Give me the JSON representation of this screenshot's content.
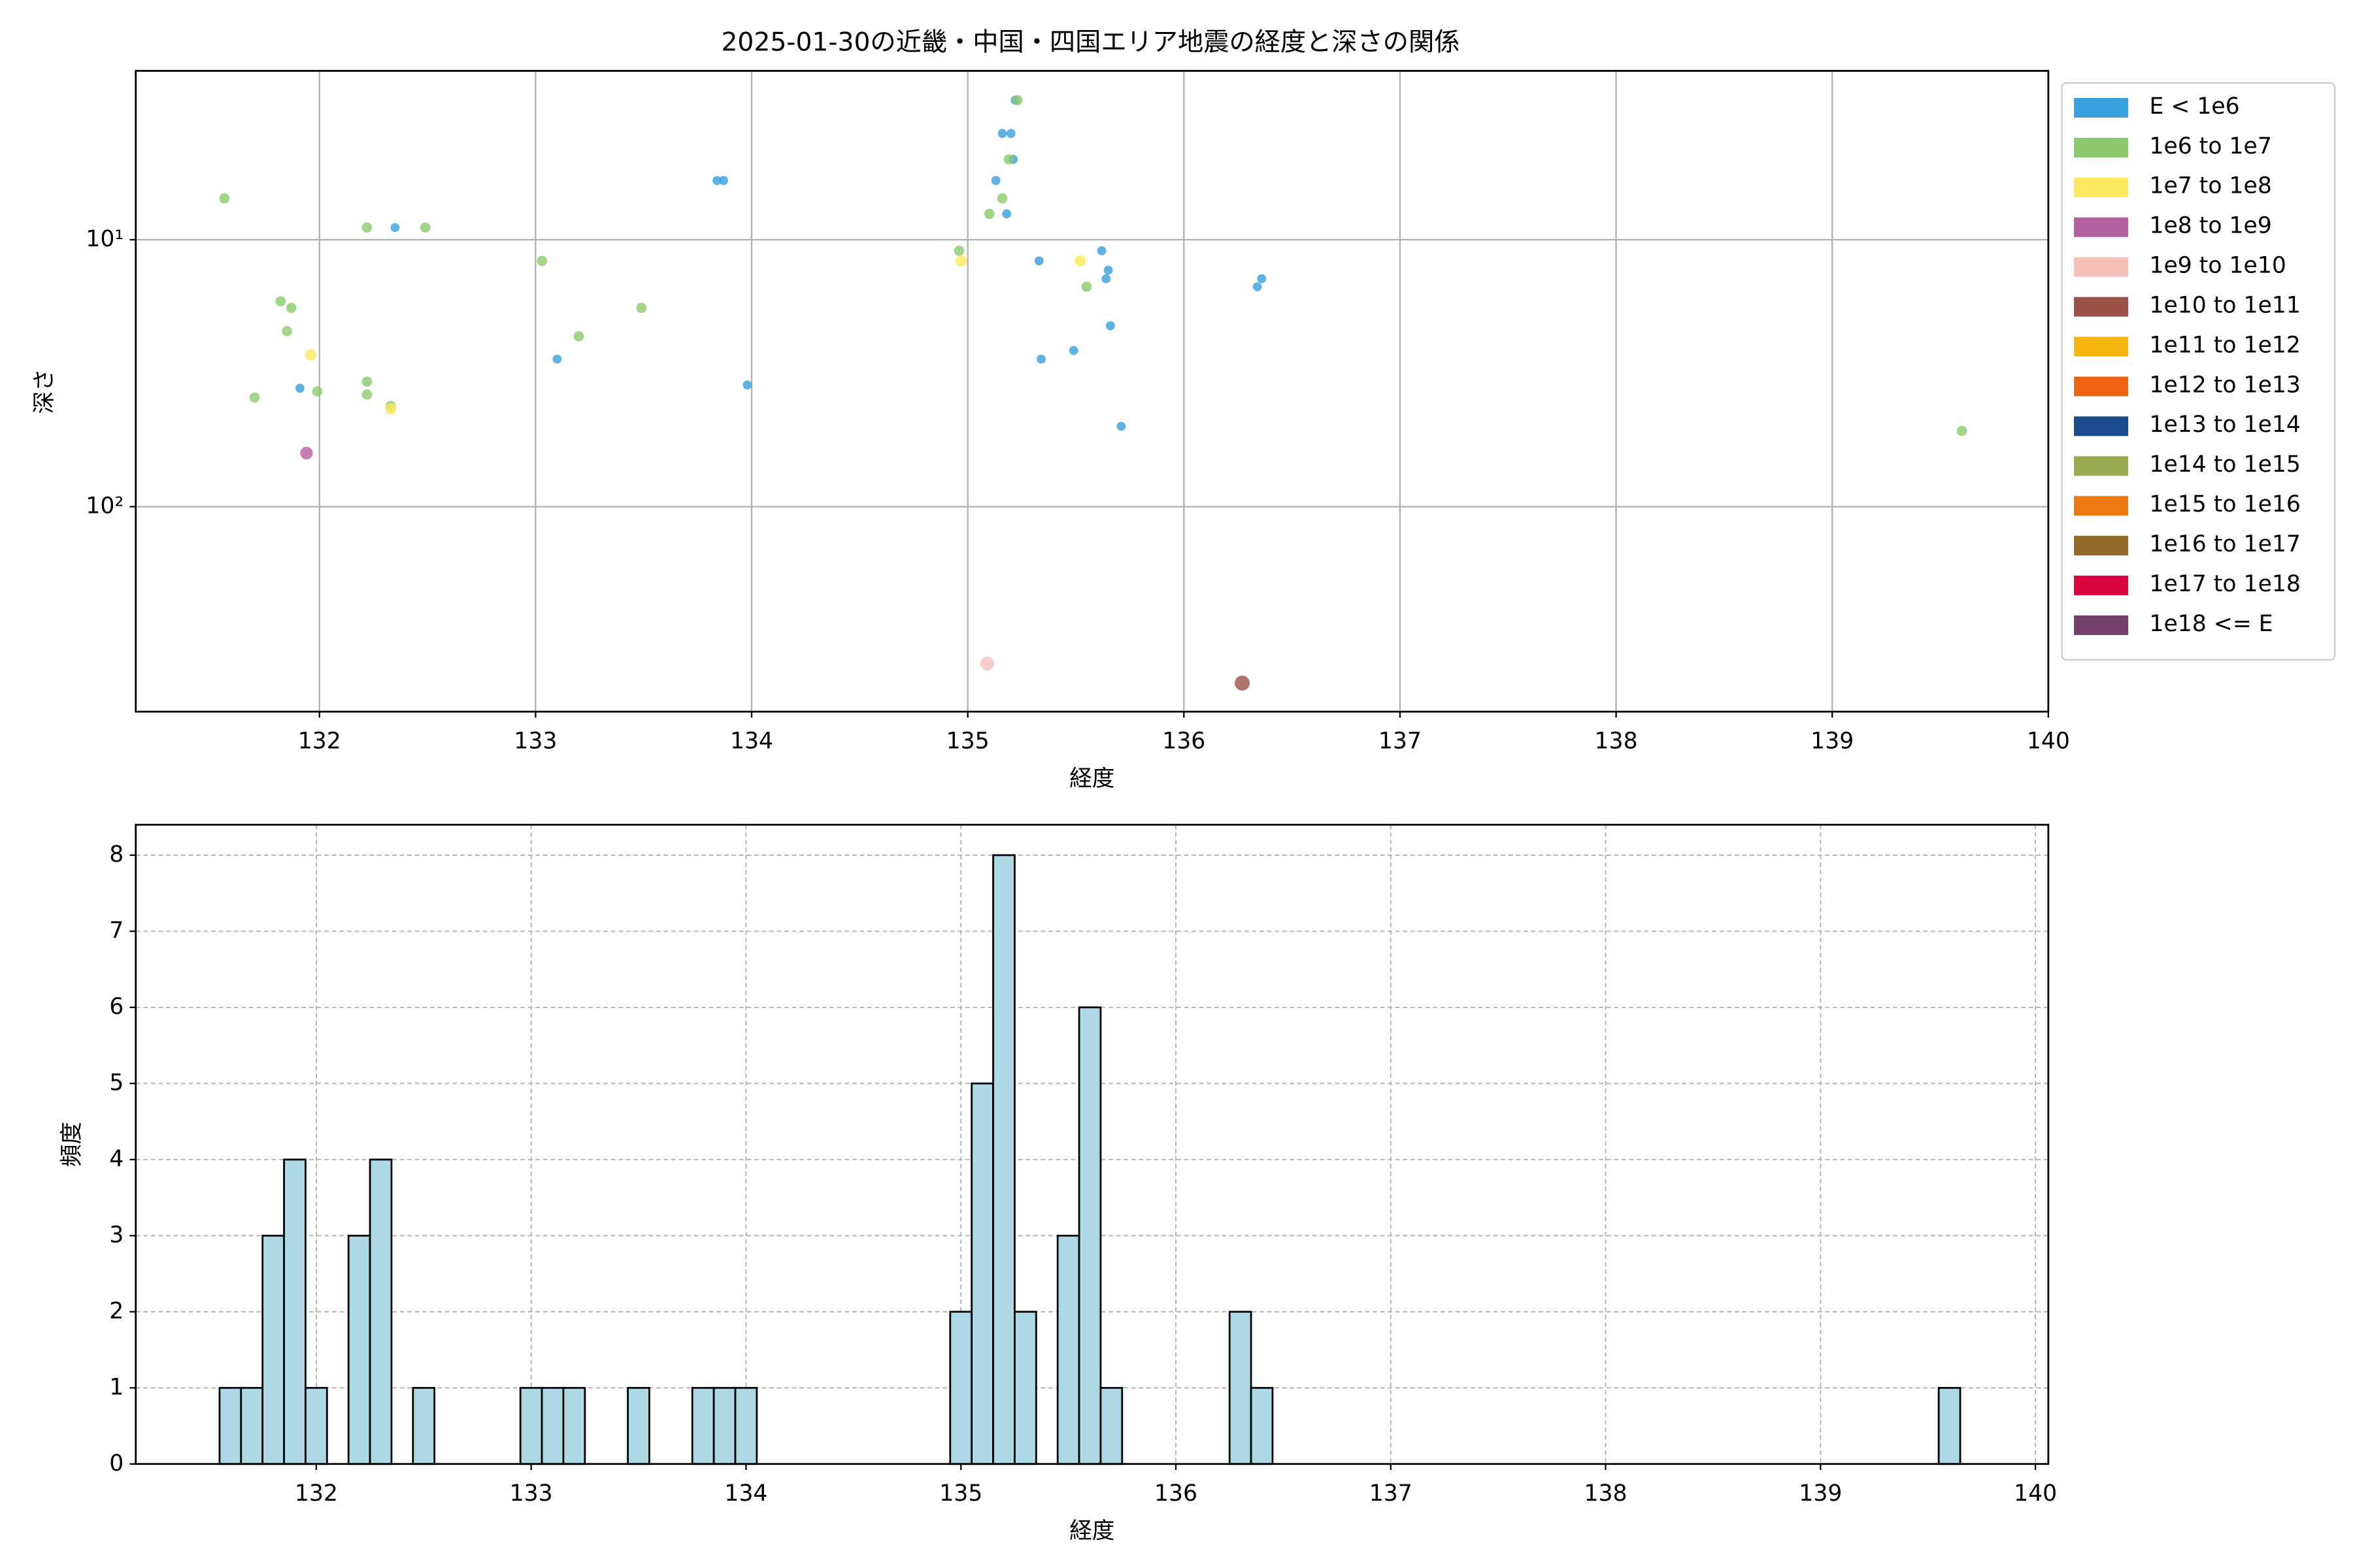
{
  "chart_data": [
    {
      "type": "scatter",
      "title": "2025-01-30の近畿・中国・四国エリア地震の経度と深さの関係",
      "xlabel": "経度",
      "ylabel": "深さ",
      "xlim": [
        131.15,
        140.0
      ],
      "xticks": [
        132,
        133,
        134,
        135,
        136,
        137,
        138,
        139,
        140
      ],
      "ylim": [
        2.33,
        586
      ],
      "yscale": "log",
      "yinverted": true,
      "yticks": [
        {
          "value": 10,
          "label": "10¹"
        },
        {
          "value": 100,
          "label": "10²"
        }
      ],
      "grid": true,
      "legend": "outside-upper-right",
      "series": [
        {
          "name": "E < 1e6",
          "color": "#3a9fdd",
          "x": [
            132.35,
            131.91,
            133.1,
            133.84,
            133.87,
            133.98,
            135.22,
            135.16,
            135.2,
            135.21,
            135.13,
            135.18,
            135.33,
            135.34,
            135.62,
            135.65,
            135.64,
            135.66,
            135.49,
            135.71,
            136.36,
            136.34
          ],
          "values": [
            9,
            36,
            28,
            6,
            6,
            35,
            3,
            4,
            4,
            5,
            6,
            8,
            12,
            28,
            11,
            13,
            14,
            21,
            26,
            50,
            14,
            15
          ]
        },
        {
          "name": "1e6 to 1e7",
          "color": "#8cc96e",
          "x": [
            131.56,
            132.22,
            132.49,
            131.82,
            131.87,
            131.85,
            131.7,
            131.99,
            132.22,
            132.22,
            132.33,
            133.03,
            133.2,
            133.49,
            134.96,
            135.23,
            135.19,
            135.16,
            135.1,
            135.55,
            139.6
          ],
          "values": [
            7,
            9,
            9,
            17,
            18,
            22,
            39,
            37,
            34,
            38,
            42,
            12,
            23,
            18,
            11,
            3,
            5,
            7,
            8,
            15,
            52
          ]
        },
        {
          "name": "1e7 to 1e8",
          "color": "#fde95e",
          "x": [
            131.96,
            134.97,
            135.52,
            132.33
          ],
          "values": [
            27,
            12,
            12,
            43
          ]
        },
        {
          "name": "1e8 to 1e9",
          "color": "#b3609f",
          "x": [
            131.94
          ],
          "values": [
            63
          ]
        },
        {
          "name": "1e9 to 1e10",
          "color": "#f5bfb8",
          "x": [
            135.09
          ],
          "values": [
            387
          ]
        },
        {
          "name": "1e10 to 1e11",
          "color": "#9a5048",
          "x": [
            136.27
          ],
          "values": [
            458
          ]
        },
        {
          "name": "1e11 to 1e12",
          "color": "#f6b40e",
          "x": [],
          "values": []
        },
        {
          "name": "1e12 to 1e13",
          "color": "#ee6211",
          "x": [],
          "values": []
        },
        {
          "name": "1e13 to 1e14",
          "color": "#1c4a8e",
          "x": [],
          "values": []
        },
        {
          "name": "1e14 to 1e15",
          "color": "#9bab52",
          "x": [],
          "values": []
        },
        {
          "name": "1e15 to 1e16",
          "color": "#ec7a10",
          "x": [],
          "values": []
        },
        {
          "name": "1e16 to 1e17",
          "color": "#93692a",
          "x": [],
          "values": []
        },
        {
          "name": "1e17 to 1e18",
          "color": "#d9043d",
          "x": [],
          "values": []
        },
        {
          "name": "1e18 <= E",
          "color": "#733f6b",
          "x": [],
          "values": []
        }
      ]
    },
    {
      "type": "histogram",
      "xlabel": "経度",
      "ylabel": "頻度",
      "xlim": [
        131.16,
        140.06
      ],
      "xticks": [
        132,
        133,
        134,
        135,
        136,
        137,
        138,
        139,
        140
      ],
      "ylim": [
        0,
        8.4
      ],
      "yticks": [
        0,
        1,
        2,
        3,
        4,
        5,
        6,
        7,
        8
      ],
      "grid": true,
      "color": "#add8e6",
      "edgecolor": "#000000",
      "bins": [
        131.55,
        131.65,
        131.75,
        131.85,
        131.95,
        132.05,
        132.15,
        132.25,
        132.35,
        132.45,
        132.55,
        132.65,
        132.75,
        132.85,
        132.95,
        133.05,
        133.15,
        133.25,
        133.35,
        133.45,
        133.55,
        133.65,
        133.75,
        133.85,
        133.95,
        134.05,
        134.15,
        134.25,
        134.35,
        134.45,
        134.55,
        134.65,
        134.75,
        134.85,
        134.95,
        135.05,
        135.15,
        135.25,
        135.35,
        135.45,
        135.55,
        135.65,
        135.75,
        135.85,
        135.95,
        136.05,
        136.15,
        136.25,
        136.35,
        136.45,
        136.55,
        136.65,
        136.75,
        136.85,
        136.95,
        137.05,
        137.15,
        137.25,
        137.35,
        137.45,
        137.55,
        137.65,
        137.75,
        137.85,
        137.95,
        138.05,
        138.15,
        138.25,
        138.35,
        138.45,
        138.55,
        138.65,
        138.75,
        138.85,
        138.95,
        139.05,
        139.15,
        139.25,
        139.35,
        139.45,
        139.55,
        139.65
      ],
      "values": [
        1,
        1,
        3,
        4,
        1,
        0,
        3,
        4,
        0,
        1,
        0,
        0,
        0,
        0,
        1,
        1,
        1,
        0,
        0,
        1,
        0,
        0,
        1,
        1,
        1,
        0,
        0,
        0,
        0,
        0,
        0,
        0,
        0,
        0,
        2,
        5,
        8,
        2,
        0,
        3,
        6,
        1,
        0,
        0,
        0,
        0,
        0,
        2,
        1,
        0,
        0,
        0,
        0,
        0,
        0,
        0,
        0,
        0,
        0,
        0,
        0,
        0,
        0,
        0,
        0,
        0,
        0,
        0,
        0,
        0,
        0,
        0,
        0,
        0,
        0,
        0,
        0,
        0,
        0,
        0,
        1
      ]
    }
  ]
}
